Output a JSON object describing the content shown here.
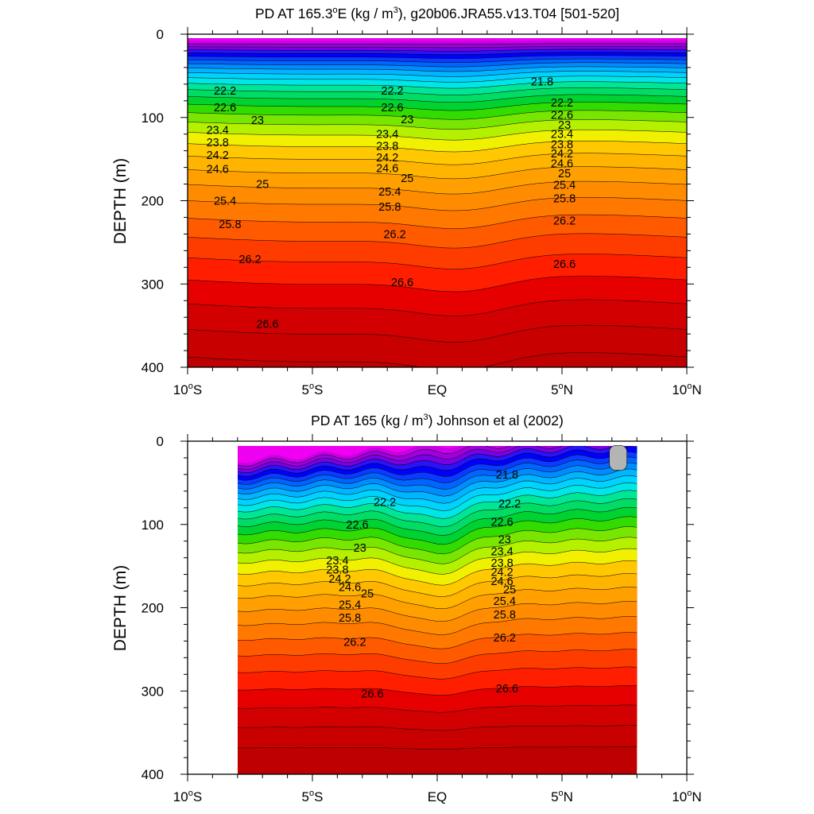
{
  "chart_data": [
    {
      "type": "contour",
      "title_main": "PD AT 165.3",
      "title_deg": "o",
      "title_rest": "E (kg / m",
      "title_exp": "3",
      "title_tail": "), g20b06.JRA55.v13.T04 [501-520]",
      "ylabel": "DEPTH (m)",
      "xlabel": "",
      "x_range": [
        -10,
        10
      ],
      "y_range": [
        0,
        400
      ],
      "y_reversed": true,
      "y_ticks": [
        "0",
        "100",
        "200",
        "300",
        "400"
      ],
      "x_ticks": [
        {
          "num": "10",
          "deg": "o",
          "hemi": "S"
        },
        {
          "num": "5",
          "deg": "o",
          "hemi": "S"
        },
        {
          "num": "EQ",
          "deg": "",
          "hemi": ""
        },
        {
          "num": "5",
          "deg": "o",
          "hemi": "N"
        },
        {
          "num": "10",
          "deg": "o",
          "hemi": "N"
        }
      ],
      "data_x_range": [
        -10,
        10
      ],
      "data_top_depth": 5,
      "contour_interval": 0.2,
      "contour_labels": [
        {
          "x": -8.5,
          "depth": 68,
          "text": "22.2"
        },
        {
          "x": -8.5,
          "depth": 88,
          "text": "22.6"
        },
        {
          "x": -7.2,
          "depth": 103,
          "text": "23"
        },
        {
          "x": -8.8,
          "depth": 115,
          "text": "23.4"
        },
        {
          "x": -8.8,
          "depth": 130,
          "text": "23.8"
        },
        {
          "x": -8.8,
          "depth": 145,
          "text": "24.2"
        },
        {
          "x": -8.8,
          "depth": 162,
          "text": "24.6"
        },
        {
          "x": -7.0,
          "depth": 180,
          "text": "25"
        },
        {
          "x": -8.5,
          "depth": 200,
          "text": "25.4"
        },
        {
          "x": -8.3,
          "depth": 228,
          "text": "25.8"
        },
        {
          "x": -7.5,
          "depth": 270,
          "text": "26.2"
        },
        {
          "x": -6.8,
          "depth": 348,
          "text": "26.6"
        },
        {
          "x": -1.8,
          "depth": 68,
          "text": "22.2"
        },
        {
          "x": -1.8,
          "depth": 88,
          "text": "22.6"
        },
        {
          "x": -1.2,
          "depth": 102,
          "text": "23"
        },
        {
          "x": -2.0,
          "depth": 120,
          "text": "23.4"
        },
        {
          "x": -2.0,
          "depth": 134,
          "text": "23.8"
        },
        {
          "x": -2.0,
          "depth": 148,
          "text": "24.2"
        },
        {
          "x": -2.0,
          "depth": 161,
          "text": "24.6"
        },
        {
          "x": -1.2,
          "depth": 173,
          "text": "25"
        },
        {
          "x": -1.9,
          "depth": 189,
          "text": "25.4"
        },
        {
          "x": -1.9,
          "depth": 207,
          "text": "25.8"
        },
        {
          "x": -1.7,
          "depth": 240,
          "text": "26.2"
        },
        {
          "x": -1.4,
          "depth": 298,
          "text": "26.6"
        },
        {
          "x": 4.2,
          "depth": 57,
          "text": "21.8"
        },
        {
          "x": 5.0,
          "depth": 82,
          "text": "22.2"
        },
        {
          "x": 5.0,
          "depth": 97,
          "text": "22.6"
        },
        {
          "x": 5.1,
          "depth": 109,
          "text": "23"
        },
        {
          "x": 5.0,
          "depth": 120,
          "text": "23.4"
        },
        {
          "x": 5.0,
          "depth": 132,
          "text": "23.8"
        },
        {
          "x": 5.0,
          "depth": 143,
          "text": "24.2"
        },
        {
          "x": 5.0,
          "depth": 155,
          "text": "24.6"
        },
        {
          "x": 5.1,
          "depth": 167,
          "text": "25"
        },
        {
          "x": 5.1,
          "depth": 181,
          "text": "25.4"
        },
        {
          "x": 5.1,
          "depth": 197,
          "text": "25.8"
        },
        {
          "x": 5.1,
          "depth": 224,
          "text": "26.2"
        },
        {
          "x": 5.1,
          "depth": 276,
          "text": "26.6"
        }
      ]
    },
    {
      "type": "contour",
      "title_main": "PD AT 165",
      "title_deg": "",
      "title_rest": " (kg / m",
      "title_exp": "3",
      "title_tail": ") Johnson et al (2002)",
      "ylabel": "DEPTH (m)",
      "xlabel": "",
      "x_range": [
        -10,
        10
      ],
      "y_range": [
        0,
        400
      ],
      "y_reversed": true,
      "y_ticks": [
        "0",
        "100",
        "200",
        "300",
        "400"
      ],
      "x_ticks": [
        {
          "num": "10",
          "deg": "o",
          "hemi": "S"
        },
        {
          "num": "5",
          "deg": "o",
          "hemi": "S"
        },
        {
          "num": "EQ",
          "deg": "",
          "hemi": ""
        },
        {
          "num": "5",
          "deg": "o",
          "hemi": "N"
        },
        {
          "num": "10",
          "deg": "o",
          "hemi": "N"
        }
      ],
      "data_x_range": [
        -8,
        8
      ],
      "data_top_depth": 5,
      "contour_interval": 0.2,
      "missing_patch": {
        "x_range": [
          6.9,
          7.6
        ],
        "depth_range": [
          5,
          35
        ],
        "color": "#b4b4b4"
      },
      "contour_labels": [
        {
          "x": 2.8,
          "depth": 40,
          "text": "21.8"
        },
        {
          "x": -2.1,
          "depth": 73,
          "text": "22.2"
        },
        {
          "x": 2.9,
          "depth": 75,
          "text": "22.2"
        },
        {
          "x": -3.2,
          "depth": 100,
          "text": "22.6"
        },
        {
          "x": 2.6,
          "depth": 97,
          "text": "22.6"
        },
        {
          "x": -3.1,
          "depth": 128,
          "text": "23"
        },
        {
          "x": 2.7,
          "depth": 118,
          "text": "23"
        },
        {
          "x": -4.0,
          "depth": 143,
          "text": "23.4"
        },
        {
          "x": 2.6,
          "depth": 132,
          "text": "23.4"
        },
        {
          "x": -4.0,
          "depth": 154,
          "text": "23.8"
        },
        {
          "x": 2.6,
          "depth": 146,
          "text": "23.8"
        },
        {
          "x": -3.9,
          "depth": 165,
          "text": "24.2"
        },
        {
          "x": 2.6,
          "depth": 157,
          "text": "24.2"
        },
        {
          "x": -3.5,
          "depth": 175,
          "text": "24.6"
        },
        {
          "x": 2.6,
          "depth": 168,
          "text": "24.6"
        },
        {
          "x": -2.8,
          "depth": 183,
          "text": "25"
        },
        {
          "x": 2.9,
          "depth": 178,
          "text": "25"
        },
        {
          "x": -3.5,
          "depth": 196,
          "text": "25.4"
        },
        {
          "x": 2.7,
          "depth": 192,
          "text": "25.4"
        },
        {
          "x": -3.5,
          "depth": 212,
          "text": "25.8"
        },
        {
          "x": 2.7,
          "depth": 208,
          "text": "25.8"
        },
        {
          "x": -3.3,
          "depth": 241,
          "text": "26.2"
        },
        {
          "x": 2.7,
          "depth": 236,
          "text": "26.2"
        },
        {
          "x": -2.6,
          "depth": 303,
          "text": "26.6"
        },
        {
          "x": 2.8,
          "depth": 297,
          "text": "26.6"
        }
      ]
    }
  ]
}
